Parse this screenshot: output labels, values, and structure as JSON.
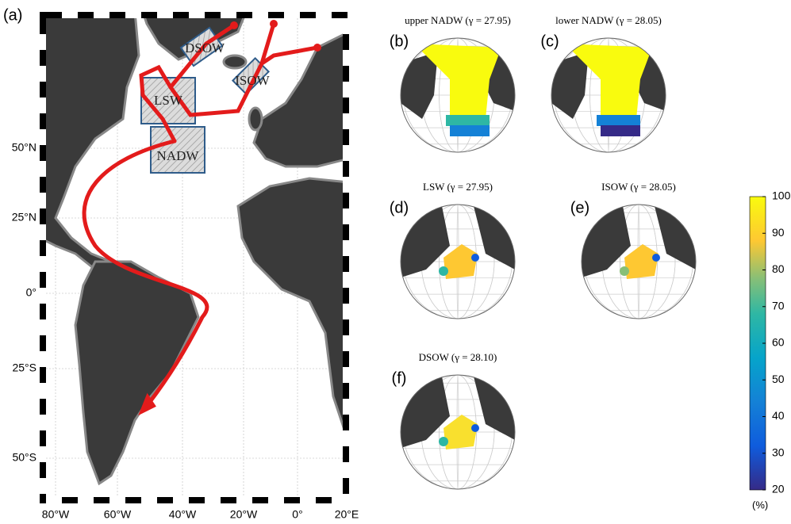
{
  "panel_a": {
    "label": "(a)",
    "regions": [
      "DSOW",
      "ISOW",
      "LSW",
      "NADW"
    ],
    "lat_ticks": [
      "50°N",
      "25°N",
      "0°",
      "25°S",
      "50°S"
    ],
    "lon_ticks": [
      "80°W",
      "60°W",
      "40°W",
      "20°W",
      "0°",
      "20°E"
    ]
  },
  "globes": [
    {
      "label": "(b)",
      "title": "upper NADW (γ = 27.95)"
    },
    {
      "label": "(c)",
      "title": "lower NADW (γ = 28.05)"
    },
    {
      "label": "(d)",
      "title": "LSW (γ = 27.95)"
    },
    {
      "label": "(e)",
      "title": "ISOW (γ = 28.05)"
    },
    {
      "label": "(f)",
      "title": "DSOW (γ = 28.10)"
    }
  ],
  "colorbar": {
    "lim": [
      20,
      100
    ],
    "ticks": [
      20,
      30,
      40,
      50,
      60,
      70,
      80,
      90,
      100
    ],
    "unit": "(%)"
  }
}
